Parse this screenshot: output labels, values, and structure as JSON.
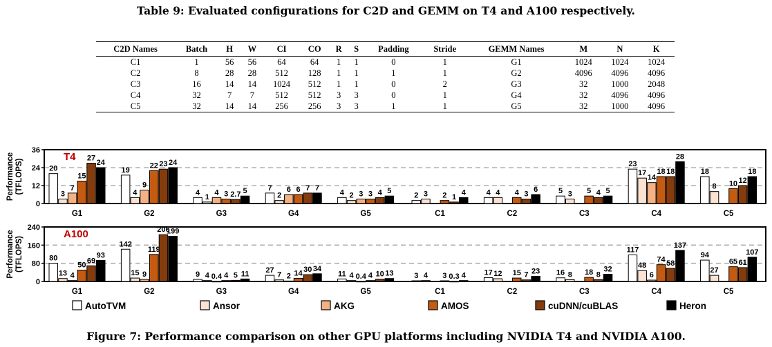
{
  "table": {
    "caption": "Table 9: Evaluated configurations for C2D and GEMM on T4 and A100 respectively.",
    "headers": [
      "C2D Names",
      "Batch",
      "H",
      "W",
      "CI",
      "CO",
      "R",
      "S",
      "Padding",
      "Stride",
      "GEMM Names",
      "M",
      "N",
      "K"
    ],
    "rows": [
      [
        "C1",
        "1",
        "56",
        "56",
        "64",
        "64",
        "1",
        "1",
        "0",
        "1",
        "G1",
        "1024",
        "1024",
        "1024"
      ],
      [
        "C2",
        "8",
        "28",
        "28",
        "512",
        "128",
        "1",
        "1",
        "1",
        "1",
        "G2",
        "4096",
        "4096",
        "4096"
      ],
      [
        "C3",
        "16",
        "14",
        "14",
        "1024",
        "512",
        "1",
        "1",
        "0",
        "2",
        "G3",
        "32",
        "1000",
        "2048"
      ],
      [
        "C4",
        "32",
        "7",
        "7",
        "512",
        "512",
        "3",
        "3",
        "0",
        "1",
        "G4",
        "32",
        "4096",
        "4096"
      ],
      [
        "C5",
        "32",
        "14",
        "14",
        "256",
        "256",
        "3",
        "3",
        "1",
        "1",
        "G5",
        "32",
        "1000",
        "4096"
      ]
    ]
  },
  "figure_caption": "Figure 7: Performance comparison on other GPU platforms including NVIDIA T4 and NVIDIA A100.",
  "chart_data": [
    {
      "type": "bar",
      "title": "T4",
      "title_color": "#c00000",
      "ylabel": "Performance (TFLOPS)",
      "ylim": [
        0,
        36
      ],
      "yticks": [
        0,
        12,
        24,
        36
      ],
      "grid": "dashed",
      "categories": [
        "G1",
        "G2",
        "G3",
        "G4",
        "G5",
        "C1",
        "C2",
        "C3",
        "C4",
        "C5"
      ],
      "series": [
        {
          "name": "AutoTVM",
          "color": "#ffffff",
          "values": [
            20,
            19,
            4,
            7,
            4,
            2,
            4,
            5,
            23,
            18
          ],
          "labels": [
            "20",
            "19",
            "4",
            "7",
            "4",
            "2",
            "4",
            "5",
            "23",
            "18"
          ]
        },
        {
          "name": "Ansor",
          "color": "#fbe2d2",
          "values": [
            3,
            4,
            1,
            2,
            2,
            3,
            4,
            3,
            17,
            8
          ],
          "labels": [
            "3",
            "4",
            "1",
            "2",
            "2",
            "3",
            "4",
            "3",
            "17",
            "8"
          ]
        },
        {
          "name": "AKG",
          "color": "#f4b183",
          "values": [
            7,
            9,
            4,
            6,
            3,
            0,
            0,
            0,
            14,
            0
          ],
          "labels": [
            "7",
            "9",
            "4",
            "6",
            "3",
            "",
            "",
            "",
            "14",
            ""
          ]
        },
        {
          "name": "AMOS",
          "color": "#c55a11",
          "values": [
            15,
            22,
            3,
            6,
            3,
            2,
            4,
            5,
            18,
            10
          ],
          "labels": [
            "15",
            "22",
            "3",
            "6",
            "3",
            "2",
            "4",
            "5",
            "18",
            "10"
          ]
        },
        {
          "name": "cuDNN/cuBLAS",
          "color": "#843c0c",
          "values": [
            27,
            23,
            2.7,
            7,
            4,
            1,
            3,
            4,
            18,
            12
          ],
          "labels": [
            "27",
            "23",
            "2.7",
            "7",
            "4",
            "1",
            "3",
            "4",
            "18",
            "12"
          ]
        },
        {
          "name": "Heron",
          "color": "#000000",
          "values": [
            24,
            24,
            5,
            7,
            5,
            4,
            6,
            5,
            28,
            18
          ],
          "labels": [
            "24",
            "24",
            "5",
            "7",
            "5",
            "4",
            "6",
            "5",
            "28",
            "18"
          ]
        }
      ]
    },
    {
      "type": "bar",
      "title": "A100",
      "title_color": "#c00000",
      "ylabel": "Performance (TFLOPS)",
      "ylim": [
        0,
        240
      ],
      "yticks": [
        0,
        80,
        160,
        240
      ],
      "grid": "dashed",
      "categories": [
        "G1",
        "G2",
        "G3",
        "G4",
        "G5",
        "C1",
        "C2",
        "C3",
        "C4",
        "C5"
      ],
      "series": [
        {
          "name": "AutoTVM",
          "color": "#ffffff",
          "values": [
            80,
            142,
            9,
            27,
            11,
            3,
            17,
            16,
            117,
            94
          ],
          "labels": [
            "80",
            "142",
            "9",
            "27",
            "11",
            "3",
            "17",
            "16",
            "117",
            "94"
          ]
        },
        {
          "name": "Ansor",
          "color": "#fbe2d2",
          "values": [
            13,
            15,
            4,
            7,
            4,
            4,
            12,
            8,
            48,
            27
          ],
          "labels": [
            "13",
            "15",
            "4",
            "7",
            "4",
            "4",
            "12",
            "8",
            "48",
            "27"
          ]
        },
        {
          "name": "AKG",
          "color": "#f4b183",
          "values": [
            4,
            9,
            0.4,
            2,
            0.4,
            0,
            0,
            0,
            6,
            0
          ],
          "labels": [
            "4",
            "9",
            "0.4",
            "2",
            "0.4",
            "",
            "",
            "",
            "6",
            ""
          ]
        },
        {
          "name": "AMOS",
          "color": "#c55a11",
          "values": [
            50,
            119,
            4,
            14,
            4,
            3,
            15,
            18,
            74,
            65
          ],
          "labels": [
            "50",
            "119",
            "4",
            "14",
            "4",
            "3",
            "15",
            "18",
            "74",
            "65"
          ]
        },
        {
          "name": "cuDNN/cuBLAS",
          "color": "#843c0c",
          "values": [
            69,
            206,
            5,
            30,
            10,
            0.3,
            7,
            8,
            58,
            61
          ],
          "labels": [
            "69",
            "206",
            "5",
            "30",
            "10",
            "0.3",
            "7",
            "8",
            "58",
            "61"
          ]
        },
        {
          "name": "Heron",
          "color": "#000000",
          "values": [
            93,
            199,
            11,
            34,
            13,
            4,
            23,
            32,
            137,
            107
          ],
          "labels": [
            "93",
            "199",
            "11",
            "34",
            "13",
            "4",
            "23",
            "32",
            "137",
            "107"
          ]
        }
      ]
    }
  ]
}
